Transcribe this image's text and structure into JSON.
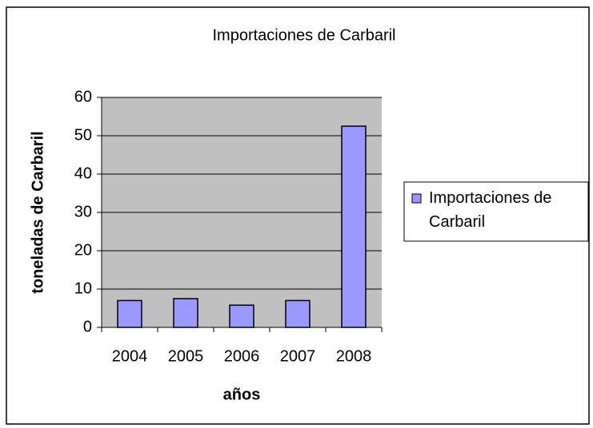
{
  "chart_data": {
    "type": "bar",
    "title": "Importaciones de Carbaril",
    "categories": [
      "2004",
      "2005",
      "2006",
      "2007",
      "2008"
    ],
    "series": [
      {
        "name": "Importaciones de Carbaril",
        "color": "#9999ff",
        "values": [
          7,
          7.5,
          5.8,
          7,
          52.5
        ]
      }
    ],
    "xlabel": "años",
    "ylabel": "toneladas de Carbaril",
    "ylim": [
      0,
      60
    ],
    "yticks": [
      0,
      10,
      20,
      30,
      40,
      50,
      60
    ],
    "grid": true,
    "legend": "right"
  }
}
